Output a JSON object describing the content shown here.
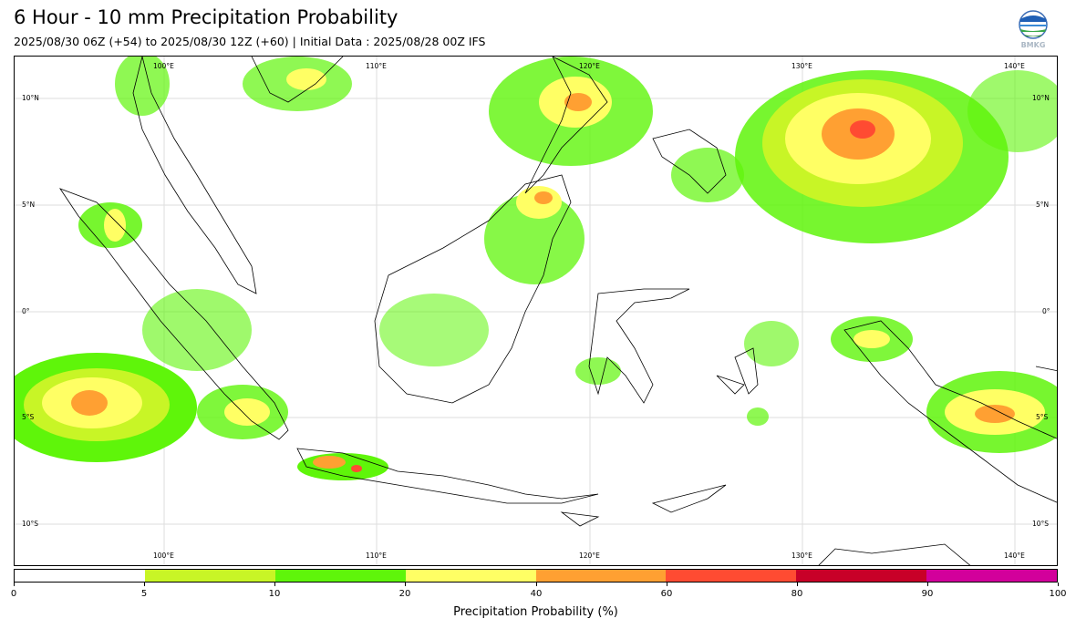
{
  "header": {
    "title": "6 Hour - 10 mm Precipitation Probability",
    "subtitle": "2025/08/30 06Z (+54) to 2025/08/30 12Z (+60) | Initial Data : 2025/08/28 00Z IFS",
    "logo_text": "BMKG"
  },
  "map": {
    "lon_labels": [
      "100°E",
      "110°E",
      "120°E",
      "130°E",
      "140°E"
    ],
    "lat_labels": [
      "10°N",
      "5°N",
      "0°",
      "5°S",
      "10°S"
    ]
  },
  "colorbar": {
    "label": "Precipitation Probability (%)",
    "ticks": [
      "0",
      "5",
      "10",
      "20",
      "40",
      "60",
      "80",
      "90",
      "100"
    ],
    "colors": [
      "#ffffff",
      "#c8f526",
      "#5ff50a",
      "#ffff64",
      "#ffa032",
      "#ff4b32",
      "#c80028",
      "#d2009b"
    ]
  }
}
